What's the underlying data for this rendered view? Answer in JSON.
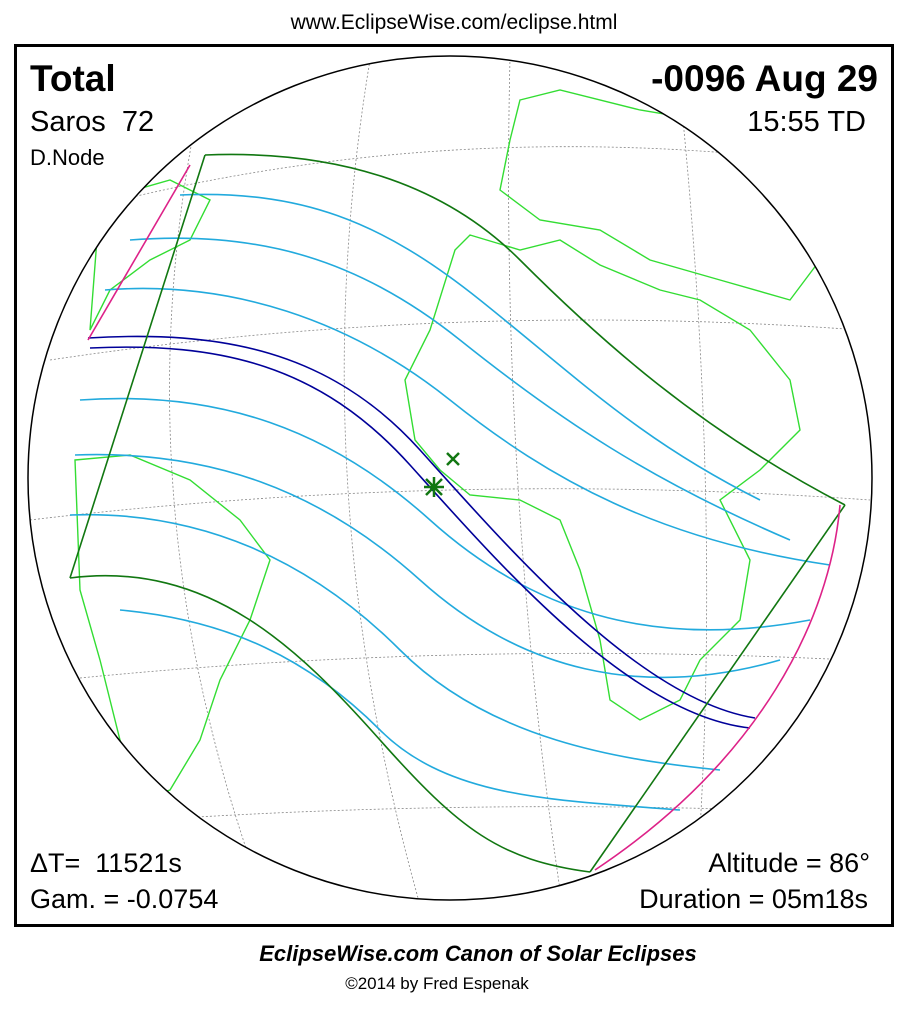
{
  "header": {
    "url": "www.EclipseWise.com/eclipse.html"
  },
  "panel": {
    "top_left": {
      "type": "Total",
      "saros": "Saros  72",
      "node": "D.Node"
    },
    "top_right": {
      "date": "-0096 Aug 29",
      "time": "15:55 TD"
    },
    "bottom_left": {
      "delta_t": "ΔT=  11521s",
      "gamma": "Gam. = -0.0754"
    },
    "bottom_right": {
      "altitude": "Altitude = 86°",
      "duration": "Duration = 05m18s"
    }
  },
  "footer": {
    "title": "EclipseWise.com Canon of Solar Eclipses",
    "credit": "©2014 by Fred Espenak"
  }
}
